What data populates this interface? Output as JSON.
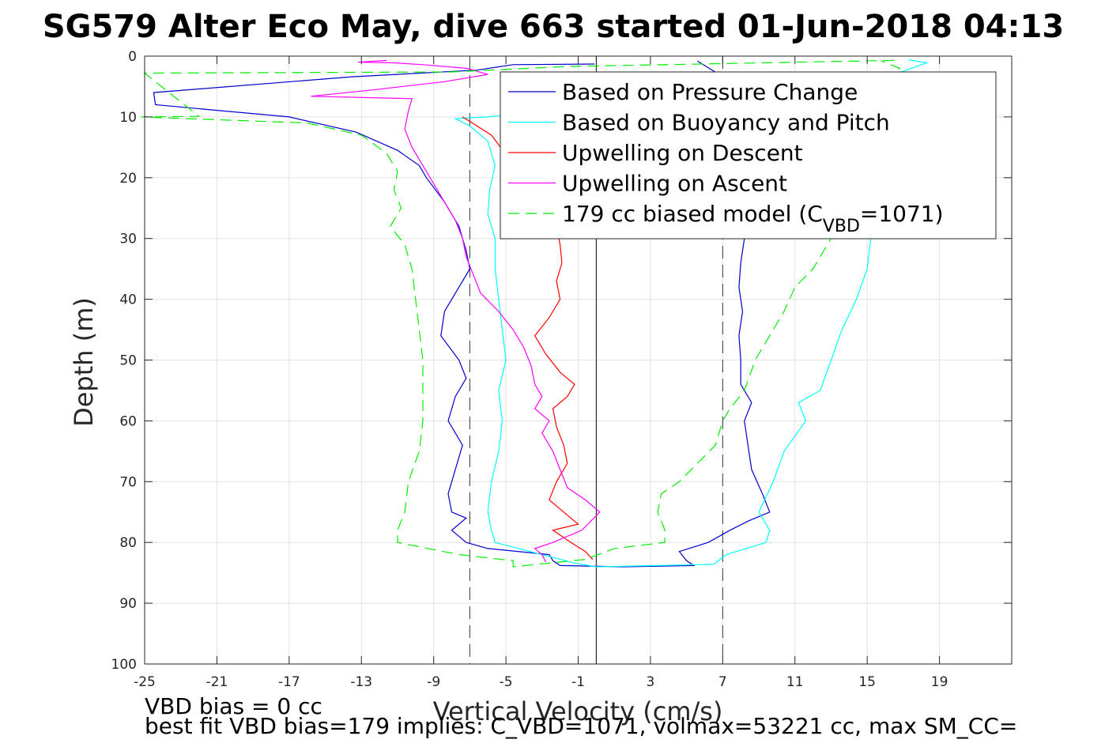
{
  "chart_data": {
    "type": "line",
    "title": "SG579 Alter Eco May, dive 663 started 01-Jun-2018 04:13",
    "xlabel": "Vertical Velocity (cm/s)",
    "ylabel": "Depth (m)",
    "xlim": [
      -25,
      23
    ],
    "ylim": [
      0,
      100
    ],
    "y_reversed": true,
    "grid": true,
    "legend_position": "top-right",
    "x_ticks": [
      "-25",
      "-21",
      "-17",
      "-13",
      "-9",
      "-5",
      "-1",
      "3",
      "7",
      "11",
      "15",
      "19"
    ],
    "x_tick_values": [
      -25,
      -21,
      -17,
      -13,
      -9,
      -5,
      -1,
      3,
      7,
      11,
      15,
      19
    ],
    "y_ticks": [
      "0",
      "10",
      "20",
      "30",
      "40",
      "50",
      "60",
      "70",
      "80",
      "90",
      "100"
    ],
    "y_tick_values": [
      0,
      10,
      20,
      30,
      40,
      50,
      60,
      70,
      80,
      90,
      100
    ],
    "vertical_lines": [
      {
        "x": 0,
        "style": "solid"
      },
      {
        "x": -7,
        "style": "dashed"
      },
      {
        "x": 7,
        "style": "dashed"
      }
    ],
    "series": [
      {
        "name": "Based on Pressure Change",
        "color": "#0000cc",
        "dash": "solid",
        "points": [
          [
            -0.1,
            1.3
          ],
          [
            -4.6,
            1.4
          ],
          [
            -6.6,
            2.3
          ],
          [
            -13.5,
            3.4
          ],
          [
            -24.5,
            6.0
          ],
          [
            -24.4,
            8.0
          ],
          [
            -17.0,
            10.0
          ],
          [
            -13.3,
            12.5
          ],
          [
            -11.0,
            15.5
          ],
          [
            -9.8,
            18.0
          ],
          [
            -9.4,
            20.0
          ],
          [
            -8.9,
            22.0
          ],
          [
            -8.4,
            24.0
          ],
          [
            -8.0,
            26.0
          ],
          [
            -7.6,
            28.0
          ],
          [
            -7.4,
            30.0
          ],
          [
            -7.2,
            32.0
          ],
          [
            -7.0,
            35.0
          ],
          [
            -7.6,
            38.0
          ],
          [
            -8.4,
            42.0
          ],
          [
            -8.6,
            46.0
          ],
          [
            -7.6,
            50.0
          ],
          [
            -7.2,
            53.0
          ],
          [
            -7.8,
            56.0
          ],
          [
            -8.2,
            60.0
          ],
          [
            -7.4,
            64.0
          ],
          [
            -7.8,
            68.0
          ],
          [
            -8.2,
            72.0
          ],
          [
            -8.0,
            75.0
          ],
          [
            -7.2,
            76.0
          ],
          [
            -8.0,
            78.0
          ],
          [
            -7.2,
            80.0
          ],
          [
            -6.0,
            81.0
          ],
          [
            -2.6,
            82.0
          ],
          [
            -2.4,
            83.0
          ],
          [
            -2.0,
            83.8
          ],
          [
            1.5,
            84.0
          ],
          [
            5.4,
            83.8
          ],
          [
            5.0,
            83.0
          ],
          [
            4.6,
            81.5
          ],
          [
            6.2,
            80.0
          ],
          [
            7.4,
            78.0
          ],
          [
            8.4,
            76.5
          ],
          [
            9.6,
            75.0
          ],
          [
            9.2,
            72.0
          ],
          [
            8.6,
            68.0
          ],
          [
            8.4,
            64.0
          ],
          [
            8.2,
            60.0
          ],
          [
            8.6,
            57.0
          ],
          [
            8.0,
            54.0
          ],
          [
            8.0,
            50.0
          ],
          [
            7.9,
            46.0
          ],
          [
            8.1,
            42.0
          ],
          [
            7.9,
            38.0
          ],
          [
            8.0,
            34.0
          ],
          [
            8.2,
            30.0
          ],
          [
            8.0,
            26.0
          ],
          [
            7.6,
            22.0
          ],
          [
            7.9,
            18.0
          ],
          [
            8.0,
            14.0
          ],
          [
            7.6,
            10.0
          ],
          [
            7.2,
            6.0
          ],
          [
            6.8,
            3.0
          ],
          [
            5.6,
            0.8
          ]
        ]
      },
      {
        "name": "Based on Buoyancy and Pitch",
        "color": "#00ffff",
        "dash": "solid",
        "points": [
          [
            -4.5,
            9.5
          ],
          [
            -6.0,
            10.0
          ],
          [
            -7.8,
            10.3
          ],
          [
            -7.0,
            11.5
          ],
          [
            -6.0,
            14.0
          ],
          [
            -5.6,
            18.0
          ],
          [
            -5.9,
            22.0
          ],
          [
            -6.0,
            26.0
          ],
          [
            -5.6,
            30.0
          ],
          [
            -5.6,
            35.0
          ],
          [
            -5.4,
            40.0
          ],
          [
            -5.2,
            45.0
          ],
          [
            -5.0,
            50.0
          ],
          [
            -5.4,
            55.0
          ],
          [
            -5.2,
            60.0
          ],
          [
            -5.4,
            65.0
          ],
          [
            -5.8,
            70.0
          ],
          [
            -6.0,
            75.0
          ],
          [
            -5.8,
            78.0
          ],
          [
            -5.6,
            80.0
          ],
          [
            -1.2,
            83.4
          ],
          [
            0.0,
            84.0
          ],
          [
            6.5,
            83.6
          ],
          [
            7.2,
            82.0
          ],
          [
            9.4,
            80.0
          ],
          [
            9.6,
            78.0
          ],
          [
            9.0,
            75.0
          ],
          [
            9.8,
            70.0
          ],
          [
            10.4,
            65.0
          ],
          [
            11.6,
            60.0
          ],
          [
            11.2,
            57.0
          ],
          [
            12.4,
            55.0
          ],
          [
            13.0,
            50.0
          ],
          [
            13.6,
            45.0
          ],
          [
            14.4,
            40.0
          ],
          [
            15.0,
            35.0
          ],
          [
            15.2,
            30.0
          ],
          [
            15.6,
            24.0
          ],
          [
            15.8,
            20.0
          ],
          [
            16.0,
            14.0
          ],
          [
            16.2,
            8.0
          ],
          [
            16.5,
            3.0
          ],
          [
            18.3,
            1.1
          ],
          [
            17.3,
            0.6
          ]
        ]
      },
      {
        "name": "Upwelling on Descent",
        "color": "#ff0000",
        "dash": "solid",
        "points": [
          [
            -7.4,
            10.0
          ],
          [
            -6.6,
            11.5
          ],
          [
            -5.8,
            13.0
          ],
          [
            -5.3,
            15.0
          ],
          [
            -5.0,
            17.0
          ],
          [
            -4.2,
            19.0
          ],
          [
            -3.6,
            22.0
          ],
          [
            -2.6,
            25.0
          ],
          [
            -2.2,
            28.0
          ],
          [
            -2.0,
            31.0
          ],
          [
            -1.9,
            34.0
          ],
          [
            -2.2,
            37.0
          ],
          [
            -2.0,
            40.0
          ],
          [
            -2.6,
            43.0
          ],
          [
            -3.4,
            46.0
          ],
          [
            -2.8,
            49.0
          ],
          [
            -2.0,
            52.0
          ],
          [
            -1.2,
            54.0
          ],
          [
            -1.6,
            56.0
          ],
          [
            -2.4,
            58.0
          ],
          [
            -2.2,
            61.0
          ],
          [
            -1.8,
            64.0
          ],
          [
            -1.6,
            67.0
          ],
          [
            -2.2,
            70.0
          ],
          [
            -2.6,
            73.0
          ],
          [
            -1.8,
            75.0
          ],
          [
            -1.0,
            77.0
          ],
          [
            -2.4,
            78.0
          ],
          [
            -1.4,
            80.0
          ],
          [
            -0.6,
            81.5
          ],
          [
            -0.2,
            82.8
          ]
        ]
      },
      {
        "name": "Upwelling on Ascent",
        "color": "#ff00ff",
        "dash": "solid",
        "points": [
          [
            -2.8,
            83.2
          ],
          [
            -3.0,
            82.0
          ],
          [
            -3.4,
            81.0
          ],
          [
            -2.4,
            80.0
          ],
          [
            -0.8,
            78.0
          ],
          [
            0.2,
            75.0
          ],
          [
            -0.6,
            73.0
          ],
          [
            -1.6,
            71.0
          ],
          [
            -2.0,
            68.0
          ],
          [
            -2.4,
            65.0
          ],
          [
            -3.0,
            62.0
          ],
          [
            -2.6,
            60.0
          ],
          [
            -3.4,
            58.0
          ],
          [
            -3.0,
            56.0
          ],
          [
            -3.4,
            54.0
          ],
          [
            -3.6,
            51.0
          ],
          [
            -4.0,
            48.0
          ],
          [
            -4.6,
            45.0
          ],
          [
            -5.4,
            42.0
          ],
          [
            -6.4,
            39.0
          ],
          [
            -6.8,
            36.0
          ],
          [
            -7.2,
            33.0
          ],
          [
            -7.4,
            30.0
          ],
          [
            -7.8,
            27.0
          ],
          [
            -8.4,
            24.0
          ],
          [
            -9.0,
            21.0
          ],
          [
            -9.6,
            18.0
          ],
          [
            -10.2,
            15.0
          ],
          [
            -10.6,
            12.0
          ],
          [
            -10.4,
            9.0
          ],
          [
            -10.2,
            7.0
          ],
          [
            -15.8,
            6.6
          ],
          [
            -12.2,
            5.5
          ],
          [
            -8.4,
            4.2
          ],
          [
            -6.0,
            3.0
          ],
          [
            -7.2,
            2.0
          ],
          [
            -9.6,
            1.4
          ],
          [
            -11.2,
            1.1
          ],
          [
            -13.2,
            1.0
          ],
          [
            -11.6,
            0.7
          ]
        ]
      },
      {
        "name": "179 cc biased model (C_VBD=1071)",
        "legend_label_main": "179 cc biased model (C",
        "legend_label_sub": "VBD",
        "legend_label_tail": "=1071)",
        "color": "#00ee00",
        "dash": "dashed",
        "points": [
          [
            16.5,
            0.7
          ],
          [
            -1.6,
            1.7
          ],
          [
            -8.0,
            2.6
          ],
          [
            -25.0,
            2.8
          ],
          [
            -22.0,
            9.9
          ],
          [
            -25.2,
            10.0
          ],
          [
            -16.0,
            11.0
          ],
          [
            -13.0,
            13.0
          ],
          [
            -11.6,
            16.0
          ],
          [
            -11.0,
            19.0
          ],
          [
            -11.2,
            22.0
          ],
          [
            -10.8,
            25.0
          ],
          [
            -11.4,
            28.0
          ],
          [
            -10.6,
            31.0
          ],
          [
            -10.2,
            35.0
          ],
          [
            -10.0,
            40.0
          ],
          [
            -9.8,
            45.0
          ],
          [
            -9.6,
            50.0
          ],
          [
            -9.6,
            55.0
          ],
          [
            -9.6,
            60.0
          ],
          [
            -9.8,
            65.0
          ],
          [
            -10.4,
            70.0
          ],
          [
            -10.6,
            75.0
          ],
          [
            -11.0,
            78.0
          ],
          [
            -11.0,
            80.0
          ],
          [
            -7.6,
            82.0
          ],
          [
            -4.6,
            83.0
          ],
          [
            -4.6,
            84.0
          ],
          [
            -0.6,
            82.8
          ],
          [
            1.0,
            81.0
          ],
          [
            3.8,
            80.0
          ],
          [
            3.8,
            78.0
          ],
          [
            3.4,
            75.0
          ],
          [
            3.6,
            72.0
          ],
          [
            4.6,
            70.0
          ],
          [
            5.6,
            67.0
          ],
          [
            6.6,
            64.0
          ],
          [
            7.0,
            60.0
          ],
          [
            7.4,
            58.0
          ],
          [
            8.2,
            55.0
          ],
          [
            8.8,
            50.0
          ],
          [
            9.6,
            46.0
          ],
          [
            10.4,
            42.0
          ],
          [
            11.0,
            38.0
          ],
          [
            12.0,
            35.0
          ],
          [
            13.0,
            30.0
          ],
          [
            14.0,
            25.0
          ],
          [
            15.0,
            20.0
          ],
          [
            15.4,
            15.0
          ],
          [
            15.6,
            10.0
          ],
          [
            15.8,
            5.0
          ],
          [
            16.8,
            2.0
          ],
          [
            15.8,
            0.8
          ]
        ]
      }
    ]
  },
  "notes": {
    "vbd_bias": "VBD bias = 0 cc",
    "best_fit": "best fit VBD bias=179 implies: C_VBD=1071, volmax=53221 cc, max SM_CC="
  }
}
